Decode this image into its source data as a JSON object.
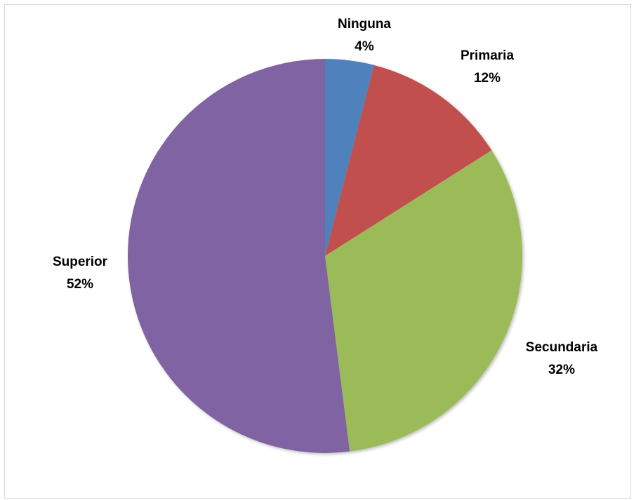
{
  "chart_data": {
    "type": "pie",
    "title": "",
    "categories": [
      "Ninguna",
      "Primaria",
      "Secundaria",
      "Superior"
    ],
    "values": [
      4,
      12,
      32,
      52
    ],
    "value_labels": [
      "4%",
      "12%",
      "32%",
      "52%"
    ],
    "colors": [
      "#4f81bd",
      "#c0504d",
      "#9bbb59",
      "#8064a2"
    ],
    "start_angle_deg": 0,
    "direction": "clockwise",
    "legend": "none",
    "data_labels": "outside"
  }
}
